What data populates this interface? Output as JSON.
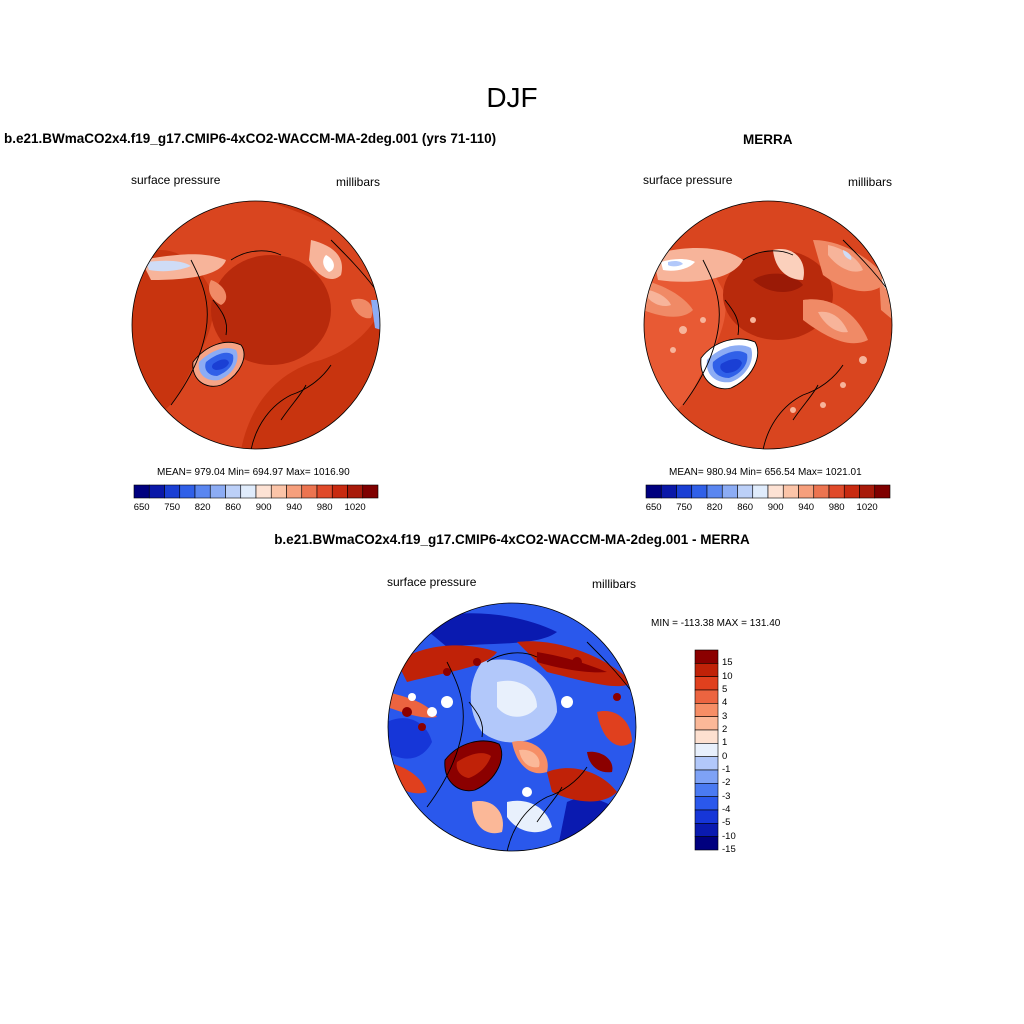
{
  "title": "DJF",
  "colors": {
    "hbar": [
      "#00007f",
      "#0a18a8",
      "#1a3fd4",
      "#3060e8",
      "#5a86f0",
      "#8cacf4",
      "#bcd0f8",
      "#e0ecfc",
      "#fde2d4",
      "#fbc4a8",
      "#f69f7c",
      "#ec7450",
      "#e04a2a",
      "#c82a10",
      "#a81a0a",
      "#7f0000"
    ],
    "diff": [
      "#00007f",
      "#0a1ab0",
      "#1636d8",
      "#2a58ec",
      "#4a7af2",
      "#7ea2f6",
      "#b2c8fa",
      "#e8f0fc",
      "#fde0d0",
      "#fbb898",
      "#f68e66",
      "#ec6440",
      "#e0401e",
      "#c02208",
      "#8b0000"
    ],
    "ocean_red": "#d9451f",
    "land_red": "#b82a0c"
  },
  "panels": [
    {
      "title": "b.e21.BWmaCO2x4.f19_g17.CMIP6-4xCO2-WACCM-MA-2deg.001 (yrs 71-110)",
      "left_label": "surface pressure",
      "right_label": "millibars",
      "stats": "MEAN= 979.04  Min= 694.97  Max= 1016.90",
      "ticks": [
        "650",
        "750",
        "820",
        "860",
        "900",
        "940",
        "980",
        "1020"
      ]
    },
    {
      "title": "MERRA",
      "left_label": "surface pressure",
      "right_label": "millibars",
      "stats": "MEAN= 980.94  Min= 656.54  Max= 1021.01",
      "ticks": [
        "650",
        "750",
        "820",
        "860",
        "900",
        "940",
        "980",
        "1020"
      ]
    }
  ],
  "diff_panel": {
    "title": "b.e21.BWmaCO2x4.f19_g17.CMIP6-4xCO2-WACCM-MA-2deg.001 - MERRA",
    "left_label": "surface pressure",
    "right_label": "millibars",
    "stats": "MIN = -113.38 MAX = 131.40",
    "ticks": [
      "15",
      "10",
      "5",
      "4",
      "3",
      "2",
      "1",
      "0",
      "-1",
      "-2",
      "-3",
      "-4",
      "-5",
      "-10",
      "-15"
    ]
  }
}
